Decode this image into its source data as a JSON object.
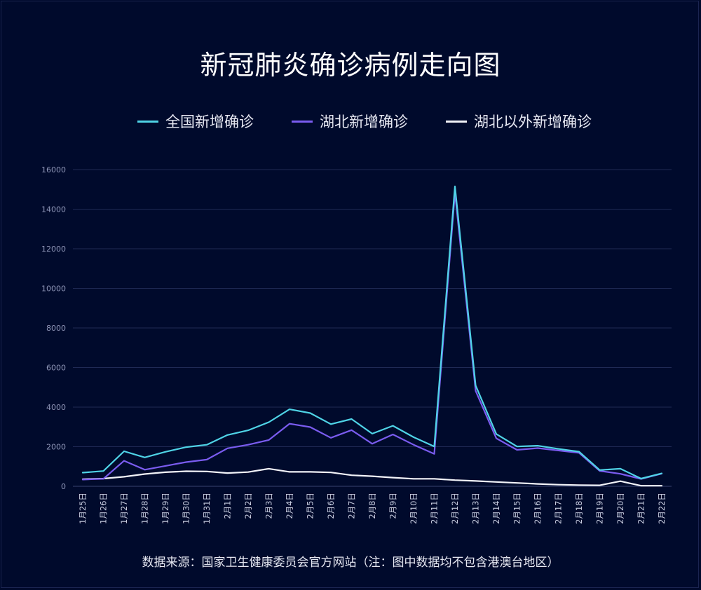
{
  "chart_data": {
    "type": "line",
    "title": "新冠肺炎确诊病例走向图",
    "xlabel": "",
    "ylabel": "",
    "ylim": [
      0,
      16000
    ],
    "y_ticks": [
      0,
      2000,
      4000,
      6000,
      8000,
      10000,
      12000,
      14000,
      16000
    ],
    "grid": true,
    "legend_position": "top",
    "categories": [
      "1月25日",
      "1月26日",
      "1月27日",
      "1月28日",
      "1月29日",
      "1月30日",
      "1月31日",
      "2月1日",
      "2月2日",
      "2月3日",
      "2月4日",
      "2月5日",
      "2月6日",
      "2月7日",
      "2月8日",
      "2月9日",
      "2月10日",
      "2月11日",
      "2月12日",
      "2月13日",
      "2月14日",
      "2月15日",
      "2月16日",
      "2月17日",
      "2月18日",
      "2月19日",
      "2月20日",
      "2月21日",
      "2月22日"
    ],
    "series": [
      {
        "name": "全国新增确诊",
        "color": "#4fd3e6",
        "values": [
          690,
          770,
          1770,
          1460,
          1740,
          1980,
          2100,
          2590,
          2830,
          3240,
          3890,
          3700,
          3140,
          3400,
          2660,
          3060,
          2480,
          2010,
          15150,
          5090,
          2640,
          2010,
          2050,
          1890,
          1750,
          820,
          890,
          390,
          650
        ]
      },
      {
        "name": "湖北新增确诊",
        "color": "#7a5cf0",
        "values": [
          340,
          380,
          1290,
          840,
          1030,
          1220,
          1350,
          1920,
          2100,
          2340,
          3160,
          2990,
          2450,
          2840,
          2150,
          2620,
          2100,
          1640,
          14840,
          4820,
          2420,
          1840,
          1930,
          1810,
          1690,
          780,
          630,
          370,
          640
        ]
      },
      {
        "name": "湖北以外新增确诊",
        "color": "#f2f3f8",
        "values": [
          360,
          390,
          480,
          620,
          710,
          760,
          750,
          670,
          720,
          890,
          730,
          730,
          700,
          560,
          510,
          440,
          380,
          380,
          310,
          270,
          220,
          170,
          120,
          80,
          60,
          50,
          260,
          30,
          30
        ]
      }
    ]
  },
  "source_note": "数据来源：国家卫生健康委员会官方网站（注：图中数据均不包含港澳台地区）"
}
